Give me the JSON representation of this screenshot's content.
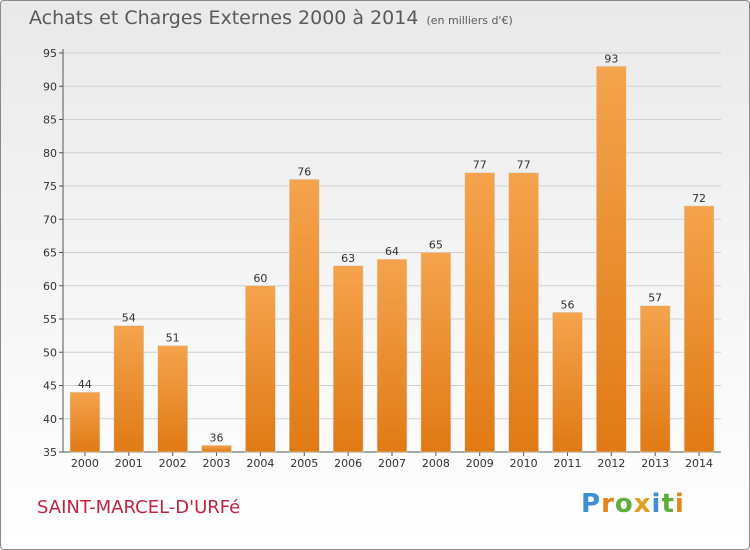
{
  "header": {
    "title": "Achats et Charges Externes 2000 à 2014",
    "unit": "(en milliers d'€)"
  },
  "footer": {
    "commune": "SAINT-MARCEL-D'URFé",
    "logo": "Proxiti"
  },
  "colors": {
    "bar_top": "#f5a34d",
    "bar_bottom": "#e07a14",
    "logo_letters": [
      "#3d8fd6",
      "#e8831a",
      "#5fae3a",
      "#e0a022",
      "#3d8fd6",
      "#5fae3a",
      "#e8831a"
    ]
  },
  "chart_data": {
    "type": "bar",
    "title": "Achats et Charges Externes 2000 à 2014",
    "subtitle": "(en milliers d'€)",
    "categories": [
      "2000",
      "2001",
      "2002",
      "2003",
      "2004",
      "2005",
      "2006",
      "2007",
      "2008",
      "2009",
      "2010",
      "2011",
      "2012",
      "2013",
      "2014"
    ],
    "values": [
      44,
      54,
      51,
      36,
      60,
      76,
      63,
      64,
      65,
      77,
      77,
      56,
      93,
      57,
      72
    ],
    "ylim": [
      35,
      95
    ],
    "yticks": [
      35,
      40,
      45,
      50,
      55,
      60,
      65,
      70,
      75,
      80,
      85,
      90,
      95
    ],
    "grid": true,
    "data_labels": true
  }
}
